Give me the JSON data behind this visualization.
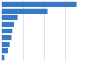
{
  "values": [
    23.8,
    14.6,
    5.2,
    4.0,
    3.5,
    3.0,
    2.5,
    2.0,
    0.9
  ],
  "bar_color": "#3679c8",
  "background_color": "#ffffff",
  "grid_color": "#d0d0d0",
  "xlim": [
    0,
    27
  ],
  "bar_height": 0.78,
  "figwidth": 1.0,
  "figheight": 0.71,
  "dpi": 100
}
